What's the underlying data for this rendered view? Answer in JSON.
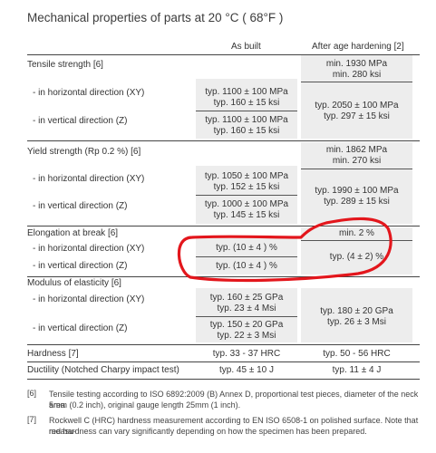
{
  "title": "Mechanical properties of parts at 20 °C ( 68°F )",
  "columns": {
    "as_built": "As built",
    "after_age": "After age hardening [2]"
  },
  "sections": {
    "tensile": {
      "label": "Tensile strength [6]",
      "after_top": [
        "min. 1930 MPa",
        "min. 280 ksi"
      ],
      "horizontal_label": "- in horizontal direction (XY)",
      "horizontal_as_built": [
        "typ. 1100 ± 100 MPa",
        "typ. 160 ± 15 ksi"
      ],
      "vertical_label": "- in vertical direction (Z)",
      "vertical_as_built": [
        "typ. 1100 ± 100 MPa",
        "typ. 160 ± 15 ksi"
      ],
      "after_dir": [
        "typ. 2050 ± 100 MPa",
        "typ. 297 ± 15 ksi"
      ]
    },
    "yield": {
      "label": "Yield strength (Rp 0.2 %) [6]",
      "after_top": [
        "min. 1862 MPa",
        "min. 270 ksi"
      ],
      "horizontal_label": "- in horizontal direction (XY)",
      "horizontal_as_built": [
        "typ. 1050 ± 100 MPa",
        "typ. 152 ± 15 ksi"
      ],
      "vertical_label": "- in vertical direction (Z)",
      "vertical_as_built": [
        "typ. 1000 ± 100 MPa",
        "typ. 145 ± 15 ksi"
      ],
      "after_dir": [
        "typ. 1990 ± 100 MPa",
        "typ. 289 ± 15 ksi"
      ]
    },
    "elongation": {
      "label": "Elongation at break [6]",
      "after_top": "min. 2 %",
      "horizontal_label": "- in horizontal direction (XY)",
      "horizontal_as_built": "typ. (10 ± 4 ) %",
      "vertical_label": "- in vertical direction (Z)",
      "vertical_as_built": "typ. (10 ± 4 ) %",
      "after_dir": "typ. (4 ± 2) %"
    },
    "modulus": {
      "label": "Modulus of elasticity [6]",
      "horizontal_label": "- in horizontal direction (XY)",
      "horizontal_as_built": [
        "typ. 160 ± 25 GPa",
        "typ. 23 ± 4 Msi"
      ],
      "vertical_label": "- in vertical direction (Z)",
      "vertical_as_built": [
        "typ. 150 ± 20 GPa",
        "typ. 22 ± 3 Msi"
      ],
      "after_dir": [
        "typ. 180 ± 20 GPa",
        "typ. 26 ± 3 Msi"
      ]
    },
    "hardness": {
      "label": "Hardness [7]",
      "as_built": "typ. 33 - 37 HRC",
      "after": "typ. 50 - 56 HRC"
    },
    "ductility": {
      "label": "Ductility (Notched Charpy impact test)",
      "as_built": "typ. 45 ± 10 J",
      "after": "typ. 11 ± 4 J"
    }
  },
  "footnotes": [
    {
      "num": "[6]",
      "lines": [
        "Tensile testing according to ISO 6892:2009 (B) Annex D, proportional test pieces, diameter of the neck area",
        "5mm (0.2 inch), original gauge length 25mm (1 inch)."
      ]
    },
    {
      "num": "[7]",
      "lines": [
        "Rockwell C (HRC) hardness measurement according to EN ISO 6508-1 on polished surface. Note that measu-",
        "red hardness can vary significantly depending on how the specimen has been prepared."
      ]
    }
  ],
  "annotation_color": "#e3161c"
}
